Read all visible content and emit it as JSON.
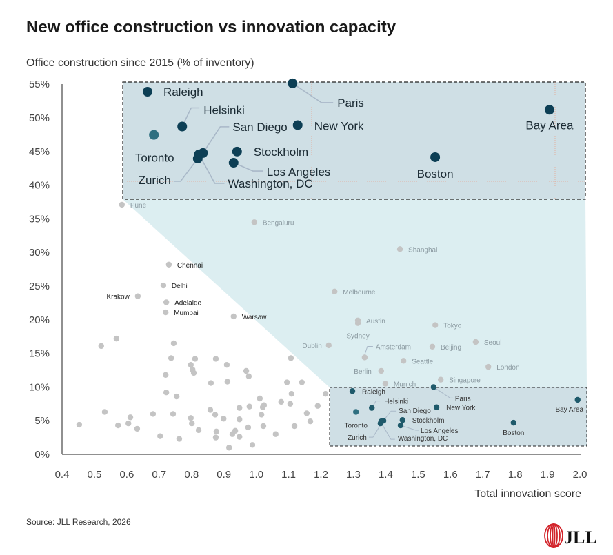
{
  "chart_data": {
    "type": "scatter",
    "title": "New office construction vs innovation capacity",
    "ylabel": "Office construction since 2015 (% of inventory)",
    "xlabel": "Total innovation score",
    "xlim": [
      0.4,
      2.0
    ],
    "ylim": [
      0,
      55
    ],
    "x_ticks": [
      "0.4",
      "0.5",
      "0.6",
      "0.7",
      "0.8",
      "0.9",
      "1.0",
      "1.1",
      "1.2",
      "1.3",
      "1.4",
      "1.5",
      "1.6",
      "1.7",
      "1.8",
      "1.9",
      "2.0"
    ],
    "y_ticks": [
      "0%",
      "5%",
      "10%",
      "15%",
      "20%",
      "25%",
      "30%",
      "35%",
      "40%",
      "45%",
      "50%",
      "55%"
    ],
    "grid": false,
    "colors": {
      "highlight": "#0d3f55",
      "highlight_small": "#1f5a6b",
      "other": "#c4c4c4",
      "inset_fill": "#cfdfe5",
      "zoom_band": "#dceef1"
    },
    "highlighted": [
      {
        "name": "Raleigh",
        "x": 1.297,
        "y": 9.4
      },
      {
        "name": "Helsinki",
        "x": 1.357,
        "y": 6.9
      },
      {
        "name": "Toronto",
        "x": 1.308,
        "y": 6.3
      },
      {
        "name": "San Diego",
        "x": 1.393,
        "y": 5.0
      },
      {
        "name": "Washington, DC",
        "x": 1.386,
        "y": 4.9
      },
      {
        "name": "Zurich",
        "x": 1.384,
        "y": 4.6
      },
      {
        "name": "Stockholm",
        "x": 1.452,
        "y": 5.1
      },
      {
        "name": "Los Angeles",
        "x": 1.446,
        "y": 4.3
      },
      {
        "name": "New York",
        "x": 1.557,
        "y": 7.0
      },
      {
        "name": "Paris",
        "x": 1.548,
        "y": 10.0
      },
      {
        "name": "Boston",
        "x": 1.795,
        "y": 4.7
      },
      {
        "name": "Bay Area",
        "x": 1.993,
        "y": 8.1
      }
    ],
    "others": [
      {
        "name": "Pune",
        "x": 0.585,
        "y": 37.1
      },
      {
        "name": "Bengaluru",
        "x": 0.994,
        "y": 34.5
      },
      {
        "name": "Chennai",
        "x": 0.73,
        "y": 28.2
      },
      {
        "name": "Delhi",
        "x": 0.713,
        "y": 25.1
      },
      {
        "name": "Krakow",
        "x": 0.634,
        "y": 23.5
      },
      {
        "name": "Adelaide",
        "x": 0.722,
        "y": 22.6
      },
      {
        "name": "Mumbai",
        "x": 0.72,
        "y": 21.1
      },
      {
        "name": "Warsaw",
        "x": 0.93,
        "y": 20.5
      },
      {
        "name": "Dublin",
        "x": 1.224,
        "y": 16.2
      },
      {
        "name": "Shanghai",
        "x": 1.444,
        "y": 30.5
      },
      {
        "name": "Melbourne",
        "x": 1.242,
        "y": 24.2
      },
      {
        "name": "Austin",
        "x": 1.314,
        "y": 19.9
      },
      {
        "name": "Sydney",
        "x": 1.314,
        "y": 19.5
      },
      {
        "name": "Tokyo",
        "x": 1.553,
        "y": 19.2
      },
      {
        "name": "Amsterdam",
        "x": 1.335,
        "y": 14.4
      },
      {
        "name": "Beijing",
        "x": 1.544,
        "y": 16.0
      },
      {
        "name": "Seoul",
        "x": 1.678,
        "y": 16.7
      },
      {
        "name": "Seattle",
        "x": 1.455,
        "y": 13.9
      },
      {
        "name": "London",
        "x": 1.717,
        "y": 13.0
      },
      {
        "name": "Berlin",
        "x": 1.386,
        "y": 12.4
      },
      {
        "name": "Munich",
        "x": 1.399,
        "y": 10.5
      },
      {
        "name": "Singapore",
        "x": 1.57,
        "y": 11.1
      },
      {
        "name": "",
        "x": 0.568,
        "y": 17.2
      },
      {
        "name": "",
        "x": 0.521,
        "y": 16.1
      },
      {
        "name": "",
        "x": 0.745,
        "y": 16.5
      },
      {
        "name": "",
        "x": 0.737,
        "y": 14.3
      },
      {
        "name": "",
        "x": 0.811,
        "y": 14.2
      },
      {
        "name": "",
        "x": 0.875,
        "y": 14.2
      },
      {
        "name": "",
        "x": 0.798,
        "y": 13.3
      },
      {
        "name": "",
        "x": 0.909,
        "y": 13.3
      },
      {
        "name": "",
        "x": 0.803,
        "y": 12.6
      },
      {
        "name": "",
        "x": 0.807,
        "y": 12.1
      },
      {
        "name": "",
        "x": 0.969,
        "y": 12.4
      },
      {
        "name": "",
        "x": 0.977,
        "y": 11.6
      },
      {
        "name": "",
        "x": 0.72,
        "y": 11.8
      },
      {
        "name": "",
        "x": 0.86,
        "y": 10.6
      },
      {
        "name": "",
        "x": 0.911,
        "y": 10.8
      },
      {
        "name": "",
        "x": 1.107,
        "y": 14.3
      },
      {
        "name": "",
        "x": 1.095,
        "y": 10.7
      },
      {
        "name": "",
        "x": 1.141,
        "y": 10.7
      },
      {
        "name": "",
        "x": 0.722,
        "y": 9.2
      },
      {
        "name": "",
        "x": 0.754,
        "y": 8.6
      },
      {
        "name": "",
        "x": 1.109,
        "y": 9.0
      },
      {
        "name": "",
        "x": 1.214,
        "y": 9.0
      },
      {
        "name": "",
        "x": 1.011,
        "y": 8.3
      },
      {
        "name": "",
        "x": 1.077,
        "y": 7.8
      },
      {
        "name": "",
        "x": 1.105,
        "y": 7.5
      },
      {
        "name": "",
        "x": 1.024,
        "y": 7.3
      },
      {
        "name": "",
        "x": 1.02,
        "y": 7.0
      },
      {
        "name": "",
        "x": 0.948,
        "y": 6.9
      },
      {
        "name": "",
        "x": 0.979,
        "y": 7.1
      },
      {
        "name": "",
        "x": 1.19,
        "y": 7.2
      },
      {
        "name": "",
        "x": 0.532,
        "y": 6.3
      },
      {
        "name": "",
        "x": 0.611,
        "y": 5.5
      },
      {
        "name": "",
        "x": 0.681,
        "y": 6.0
      },
      {
        "name": "",
        "x": 0.743,
        "y": 6.0
      },
      {
        "name": "",
        "x": 0.858,
        "y": 6.6
      },
      {
        "name": "",
        "x": 0.873,
        "y": 5.9
      },
      {
        "name": "",
        "x": 0.798,
        "y": 5.4
      },
      {
        "name": "",
        "x": 0.899,
        "y": 5.3
      },
      {
        "name": "",
        "x": 0.948,
        "y": 5.2
      },
      {
        "name": "",
        "x": 1.016,
        "y": 5.9
      },
      {
        "name": "",
        "x": 1.156,
        "y": 6.1
      },
      {
        "name": "",
        "x": 1.167,
        "y": 4.9
      },
      {
        "name": "",
        "x": 0.453,
        "y": 4.4
      },
      {
        "name": "",
        "x": 0.573,
        "y": 4.3
      },
      {
        "name": "",
        "x": 0.605,
        "y": 4.6
      },
      {
        "name": "",
        "x": 0.632,
        "y": 3.8
      },
      {
        "name": "",
        "x": 0.801,
        "y": 4.6
      },
      {
        "name": "",
        "x": 0.822,
        "y": 3.6
      },
      {
        "name": "",
        "x": 0.877,
        "y": 3.4
      },
      {
        "name": "",
        "x": 0.935,
        "y": 3.5
      },
      {
        "name": "",
        "x": 0.926,
        "y": 3.0
      },
      {
        "name": "",
        "x": 0.975,
        "y": 4.0
      },
      {
        "name": "",
        "x": 1.022,
        "y": 4.2
      },
      {
        "name": "",
        "x": 1.118,
        "y": 4.2
      },
      {
        "name": "",
        "x": 1.06,
        "y": 3.0
      },
      {
        "name": "",
        "x": 0.703,
        "y": 2.7
      },
      {
        "name": "",
        "x": 0.762,
        "y": 2.3
      },
      {
        "name": "",
        "x": 0.875,
        "y": 2.5
      },
      {
        "name": "",
        "x": 0.948,
        "y": 2.6
      },
      {
        "name": "",
        "x": 0.988,
        "y": 1.4
      },
      {
        "name": "",
        "x": 0.916,
        "y": 1.0
      }
    ]
  },
  "footer": {
    "source": "Source: JLL Research, 2026",
    "logo_text": "JLL"
  }
}
